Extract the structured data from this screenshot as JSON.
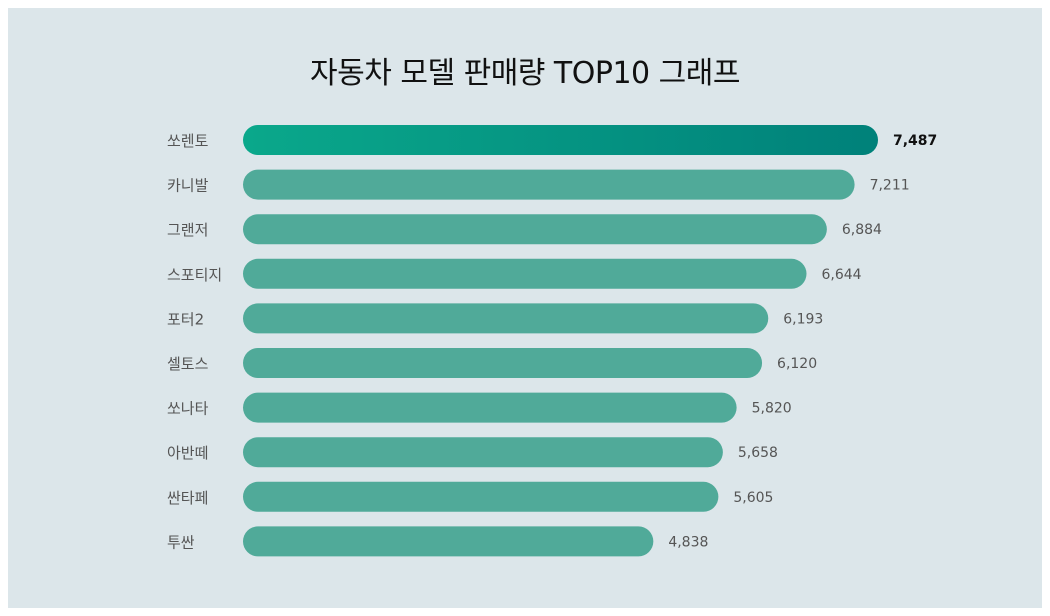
{
  "chart_data": {
    "type": "bar",
    "orientation": "horizontal",
    "title": "자동차 모델 판매량 TOP10 그래프",
    "categories": [
      "쏘렌토",
      "카니발",
      "그랜저",
      "스포티지",
      "포터2",
      "셀토스",
      "쏘나타",
      "아반떼",
      "싼타페",
      "투싼"
    ],
    "values": [
      7487,
      7211,
      6884,
      6644,
      6193,
      6120,
      5820,
      5658,
      5605,
      4838
    ],
    "value_labels": [
      "7,487",
      "7,211",
      "6,884",
      "6,644",
      "6,193",
      "6,120",
      "5,820",
      "5,658",
      "5,605",
      "4,838"
    ],
    "xlim": [
      0,
      7487
    ],
    "grid": false,
    "legend": "none",
    "colors": {
      "bar": "#50aa99",
      "top_bar_start": "#0aa88b",
      "top_bar_end": "#00817a",
      "background": "#dce6ea"
    }
  }
}
